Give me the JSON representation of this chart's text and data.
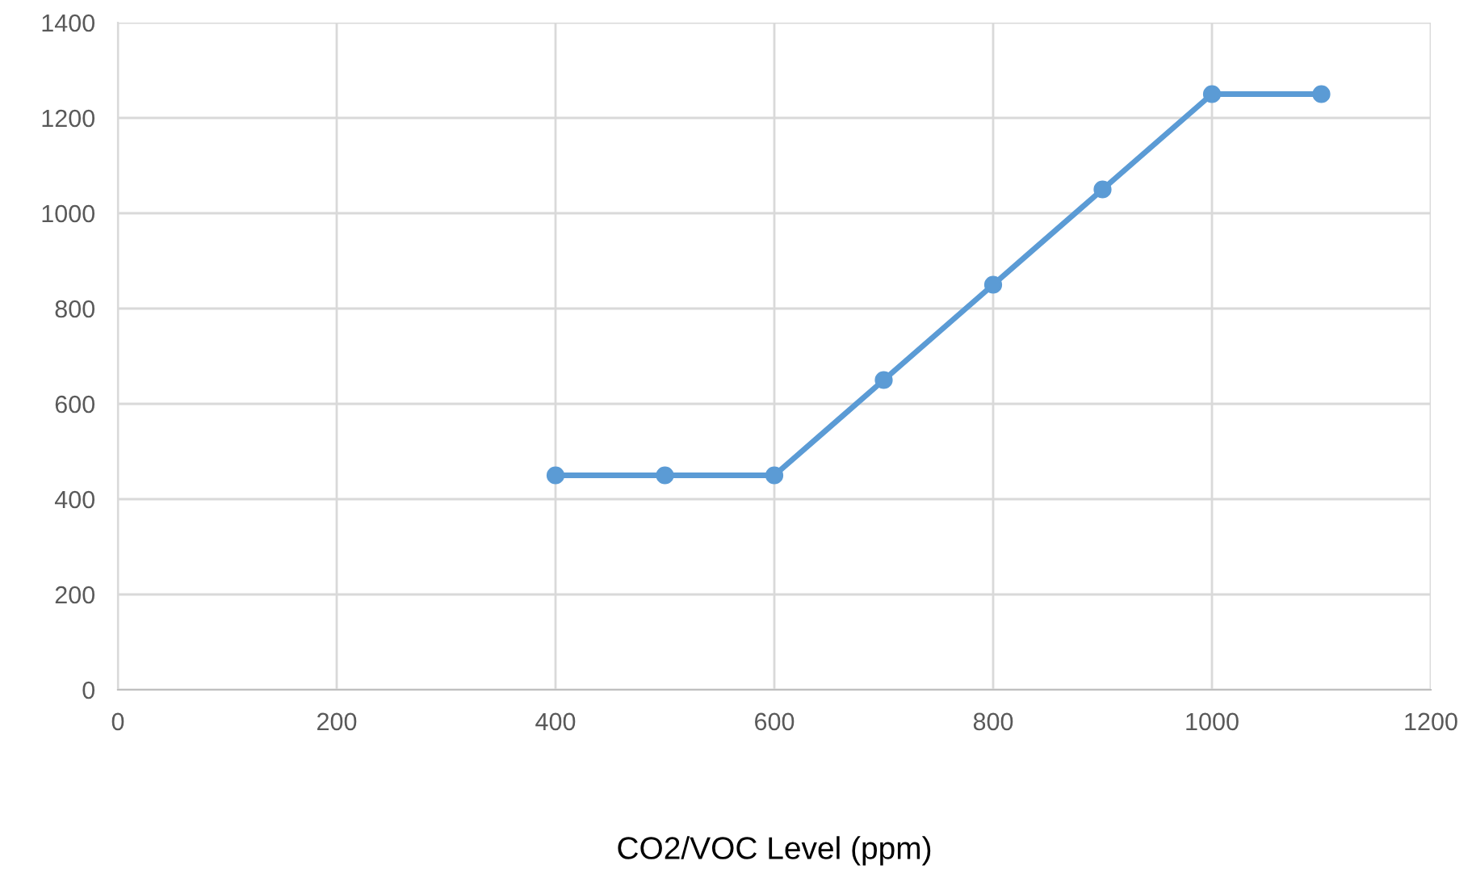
{
  "chart_data": {
    "type": "line",
    "xlabel": "CO2/VOC Level (ppm)",
    "series": [
      {
        "color": "#5b9bd5",
        "x": [
          400,
          500,
          600,
          700,
          800,
          900,
          1000,
          1100
        ],
        "values": [
          450,
          450,
          450,
          650,
          850,
          1050,
          1250,
          1250
        ]
      }
    ],
    "xlim": [
      0,
      1200
    ],
    "xticks": [
      0,
      200,
      400,
      600,
      800,
      1000,
      1200
    ],
    "ylim": [
      0,
      1400
    ],
    "yticks": [
      0,
      200,
      400,
      600,
      800,
      1000,
      1200,
      1400
    ],
    "grid": true,
    "marker": "circle",
    "line_style": "solid",
    "legend": false
  }
}
